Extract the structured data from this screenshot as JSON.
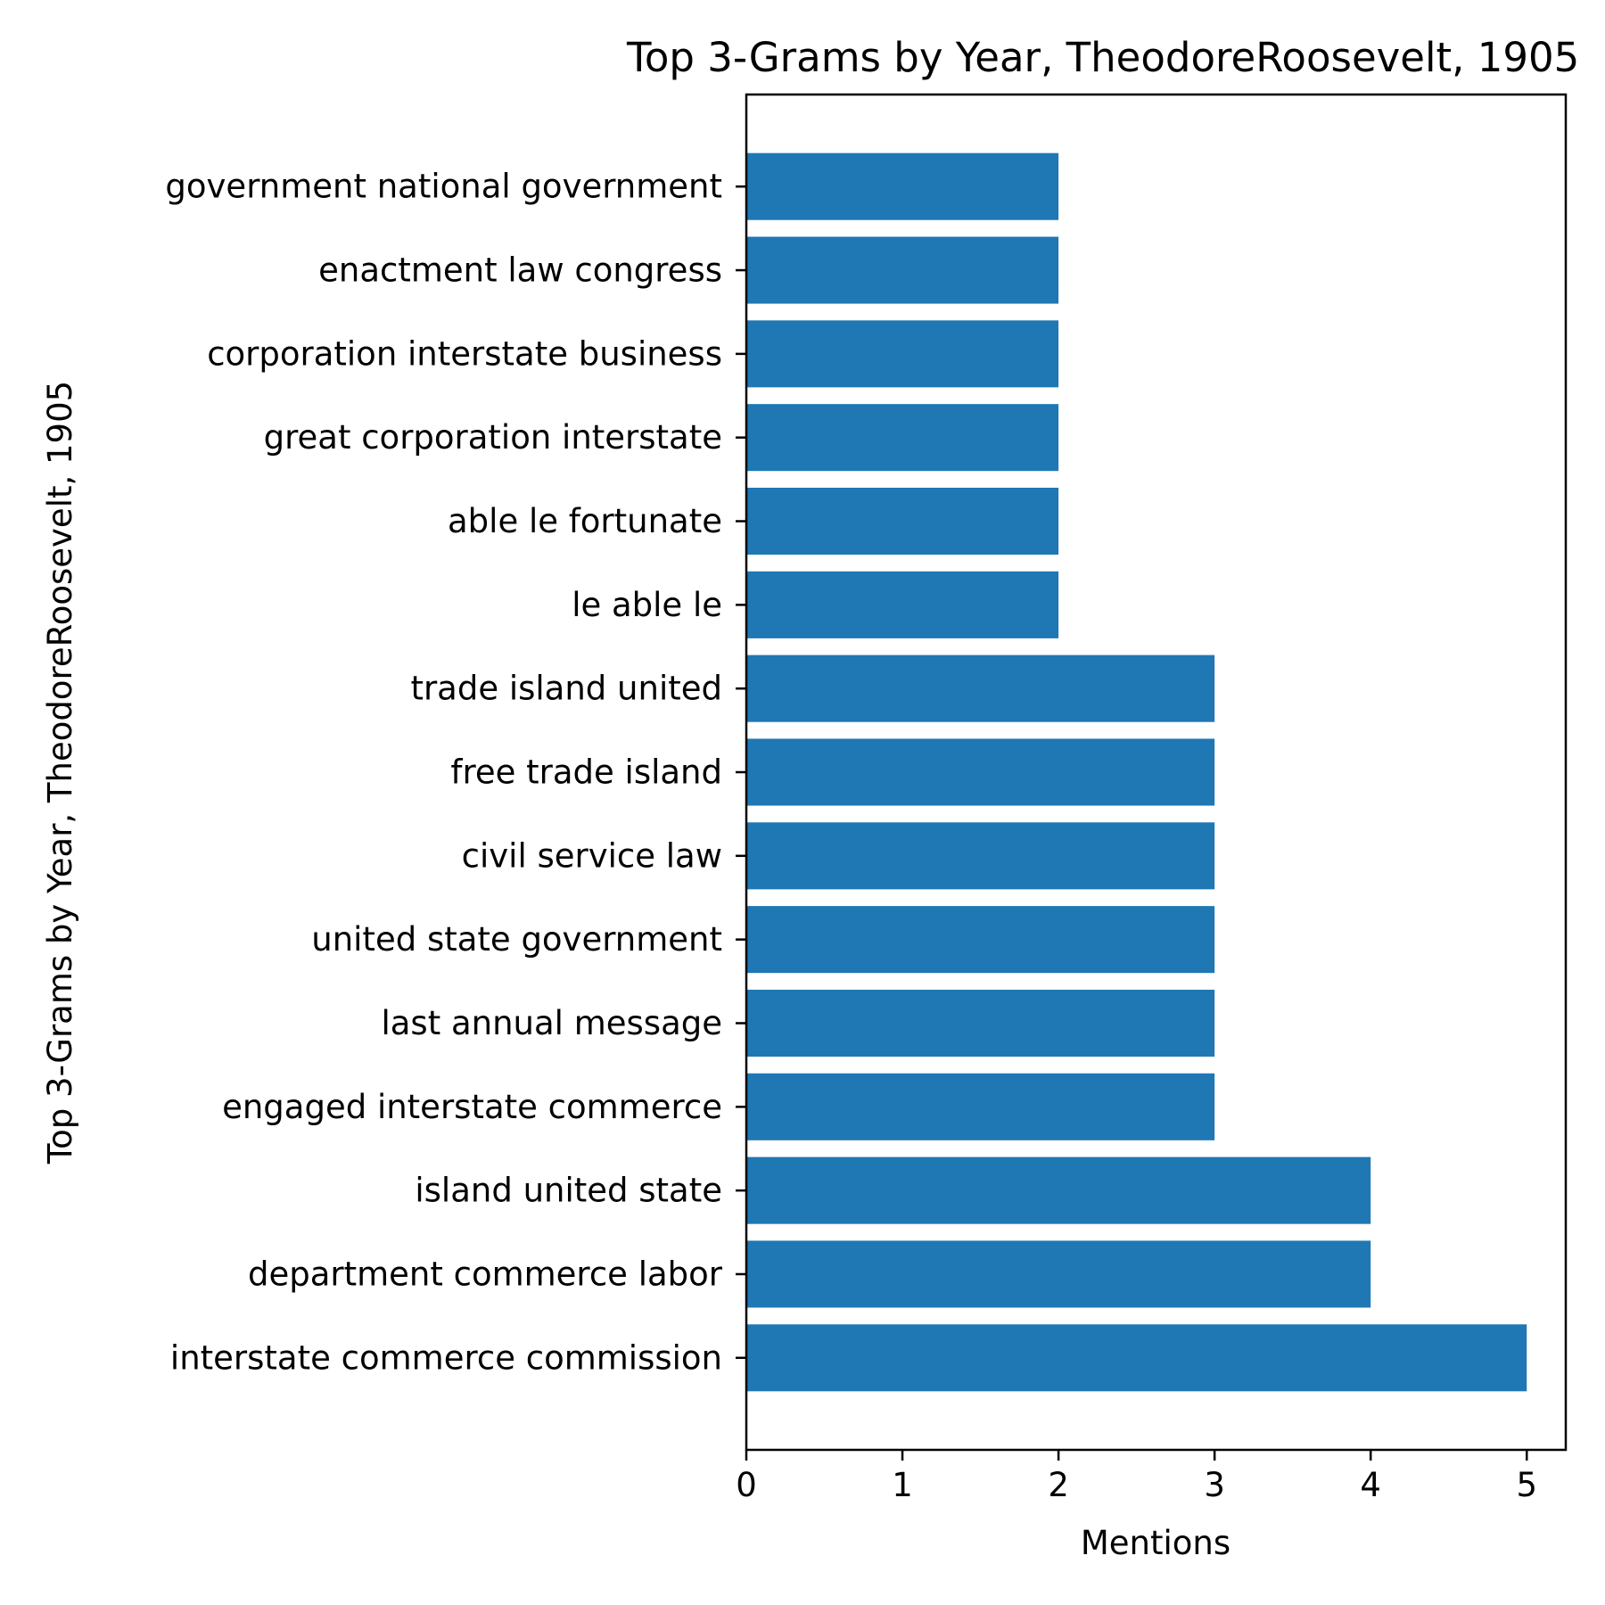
{
  "chart_data": {
    "type": "bar",
    "orientation": "horizontal",
    "title": "Top 3-Grams by Year, TheodoreRoosevelt, 1905",
    "xlabel": "Mentions",
    "ylabel": "Top 3-Grams by Year, TheodoreRoosevelt, 1905",
    "categories": [
      "interstate commerce commission",
      "department commerce labor",
      "island united state",
      "engaged interstate commerce",
      "last annual message",
      "united state government",
      "civil service law",
      "free trade island",
      "trade island united",
      "le able le",
      "able le fortunate",
      "great corporation interstate",
      "corporation interstate business",
      "enactment law congress",
      "government national government"
    ],
    "values": [
      5,
      4,
      4,
      3,
      3,
      3,
      3,
      3,
      3,
      2,
      2,
      2,
      2,
      2,
      2
    ],
    "xticks": [
      "0",
      "1",
      "2",
      "3",
      "4",
      "5"
    ],
    "xlim": [
      0,
      5.25
    ],
    "grid": false,
    "legend": "none",
    "bar_color": "#1f77b4"
  }
}
